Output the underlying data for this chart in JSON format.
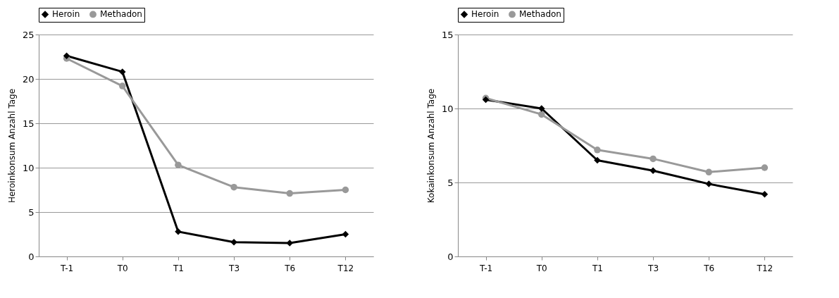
{
  "chart_data": [
    {
      "type": "line",
      "categories": [
        "T-1",
        "T0",
        "T1",
        "T3",
        "T6",
        "T12"
      ],
      "ylabel": "Heroinkonsum Anzahl Tage",
      "ylim": [
        0,
        25
      ],
      "yticks": [
        0,
        5,
        10,
        15,
        20,
        25
      ],
      "grid": "y",
      "legend": "top",
      "series": [
        {
          "name": "Heroin",
          "color": "#000000",
          "marker": "diamond",
          "values": [
            22.6,
            20.8,
            2.8,
            1.6,
            1.5,
            2.5
          ]
        },
        {
          "name": "Methadon",
          "color": "#999999",
          "marker": "circle",
          "values": [
            22.3,
            19.2,
            10.3,
            7.8,
            7.1,
            7.5
          ]
        }
      ]
    },
    {
      "type": "line",
      "categories": [
        "T-1",
        "T0",
        "T1",
        "T3",
        "T6",
        "T12"
      ],
      "ylabel": "Kokainkonsum Anzahl Tage",
      "ylim": [
        0,
        15
      ],
      "yticks": [
        0,
        5,
        10,
        15
      ],
      "grid": "y",
      "legend": "top",
      "series": [
        {
          "name": "Heroin",
          "color": "#000000",
          "marker": "diamond",
          "values": [
            10.6,
            10.0,
            6.5,
            5.8,
            4.9,
            4.2
          ]
        },
        {
          "name": "Methadon",
          "color": "#999999",
          "marker": "circle",
          "values": [
            10.7,
            9.6,
            7.2,
            6.6,
            5.7,
            6.0
          ]
        }
      ]
    }
  ]
}
